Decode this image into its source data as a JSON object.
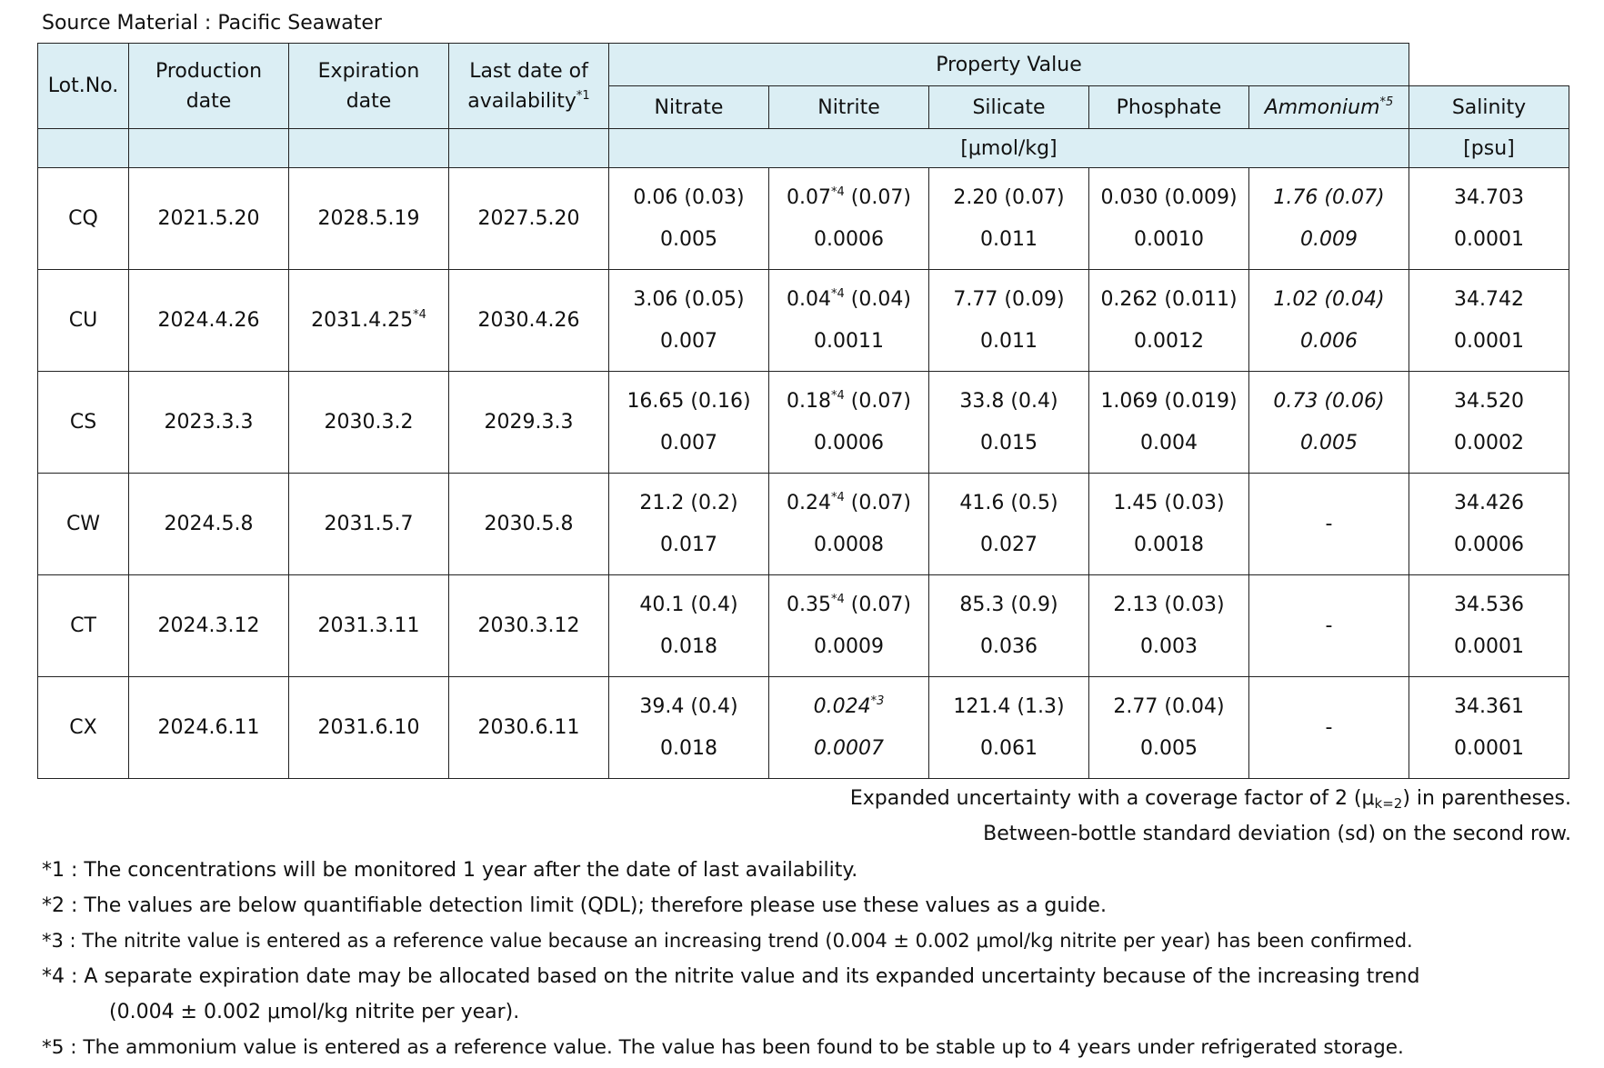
{
  "source_label": "Source Material : Pacific Seawater",
  "header": {
    "lot": "Lot.No.",
    "production_l1": "Production",
    "production_l2": "date",
    "expiration_l1": "Expiration",
    "expiration_l2": "date",
    "last_l1": "Last date of",
    "last_l2": "availability",
    "last_mark": "*1",
    "property_value": "Property Value",
    "nitrate": "Nitrate",
    "nitrite": "Nitrite",
    "silicate": "Silicate",
    "phosphate": "Phosphate",
    "ammonium": "Ammonium",
    "ammonium_mark": "*5",
    "salinity": "Salinity",
    "unit_umol": "[μmol/kg]",
    "unit_psu": "[psu]"
  },
  "rows": [
    {
      "lot": "CQ",
      "production": "2021.5.20",
      "expiration": "2028.5.19",
      "expiration_mark": "",
      "last": "2027.5.20",
      "nitrate": "0.06 (0.03)",
      "nitrate_sd": "0.005",
      "nitrite": "0.07",
      "nitrite_mark": "*4",
      "nitrite_unc": " (0.07)",
      "nitrite_sd": "0.0006",
      "silicate": "2.20 (0.07)",
      "silicate_sd": "0.011",
      "phosphate": "0.030 (0.009)",
      "phosphate_sd": "0.0010",
      "ammonium": "1.76 (0.07)",
      "ammonium_sd": "0.009",
      "salinity": "34.703",
      "salinity_sd": "0.0001"
    },
    {
      "lot": "CU",
      "production": "2024.4.26",
      "expiration": "2031.4.25",
      "expiration_mark": "*4",
      "last": "2030.4.26",
      "nitrate": "3.06 (0.05)",
      "nitrate_sd": "0.007",
      "nitrite": "0.04",
      "nitrite_mark": "*4",
      "nitrite_unc": " (0.04)",
      "nitrite_sd": "0.0011",
      "silicate": "7.77 (0.09)",
      "silicate_sd": "0.011",
      "phosphate": "0.262 (0.011)",
      "phosphate_sd": "0.0012",
      "ammonium": "1.02 (0.04)",
      "ammonium_sd": "0.006",
      "salinity": "34.742",
      "salinity_sd": "0.0001"
    },
    {
      "lot": "CS",
      "production": "2023.3.3",
      "expiration": "2030.3.2",
      "expiration_mark": "",
      "last": "2029.3.3",
      "nitrate": "16.65 (0.16)",
      "nitrate_sd": "0.007",
      "nitrite": "0.18",
      "nitrite_mark": "*4",
      "nitrite_unc": " (0.07)",
      "nitrite_sd": "0.0006",
      "silicate": "33.8 (0.4)",
      "silicate_sd": "0.015",
      "phosphate": "1.069 (0.019)",
      "phosphate_sd": "0.004",
      "ammonium": "0.73 (0.06)",
      "ammonium_sd": "0.005",
      "salinity": "34.520",
      "salinity_sd": "0.0002"
    },
    {
      "lot": "CW",
      "production": "2024.5.8",
      "expiration": "2031.5.7",
      "expiration_mark": "",
      "last": "2030.5.8",
      "nitrate": "21.2 (0.2)",
      "nitrate_sd": "0.017",
      "nitrite": "0.24",
      "nitrite_mark": "*4",
      "nitrite_unc": " (0.07)",
      "nitrite_sd": "0.0008",
      "silicate": "41.6 (0.5)",
      "silicate_sd": "0.027",
      "phosphate": "1.45 (0.03)",
      "phosphate_sd": "0.0018",
      "ammonium_dash": "-",
      "salinity": "34.426",
      "salinity_sd": "0.0006"
    },
    {
      "lot": "CT",
      "production": "2024.3.12",
      "expiration": "2031.3.11",
      "expiration_mark": "",
      "last": "2030.3.12",
      "nitrate": "40.1 (0.4)",
      "nitrate_sd": "0.018",
      "nitrite": "0.35",
      "nitrite_mark": "*4",
      "nitrite_unc": " (0.07)",
      "nitrite_sd": "0.0009",
      "silicate": "85.3 (0.9)",
      "silicate_sd": "0.036",
      "phosphate": "2.13 (0.03)",
      "phosphate_sd": "0.003",
      "ammonium_dash": "-",
      "salinity": "34.536",
      "salinity_sd": "0.0001"
    },
    {
      "lot": "CX",
      "production": "2024.6.11",
      "expiration": "2031.6.10",
      "expiration_mark": "",
      "last": "2030.6.11",
      "nitrate": "39.4 (0.4)",
      "nitrate_sd": "0.018",
      "nitrite_ref": "0.024",
      "nitrite_ref_mark": "*3",
      "nitrite_sd": "0.0007",
      "silicate": "121.4 (1.3)",
      "silicate_sd": "0.061",
      "phosphate": "2.77 (0.04)",
      "phosphate_sd": "0.005",
      "ammonium_dash": "-",
      "salinity": "34.361",
      "salinity_sd": "0.0001"
    }
  ],
  "notes": {
    "expanded_pre": "Expanded uncertainty with a coverage factor of 2 (μ",
    "expanded_sub": "k=2",
    "expanded_post": ") in parentheses.",
    "between": "Between-bottle standard deviation (sd) on the second row.",
    "fn1": "*1 : The concentrations will be monitored 1 year after the date of last availability.",
    "fn2": "*2 : The values are below quantifiable detection limit (QDL); therefore please use these values as a guide.",
    "fn3": "*3 : The nitrite value is entered as a reference value because an increasing trend (0.004 ± 0.002 μmol/kg nitrite per year) has been confirmed.",
    "fn4a": "*4 : A separate expiration date may be allocated based on the nitrite value and its expanded uncertainty because of the increasing trend",
    "fn4b": "(0.004 ± 0.002 μmol/kg nitrite per year).",
    "fn5": "*5 : The ammonium value is entered as a reference value. The value has been found to be stable up to 4 years under refrigerated storage."
  }
}
